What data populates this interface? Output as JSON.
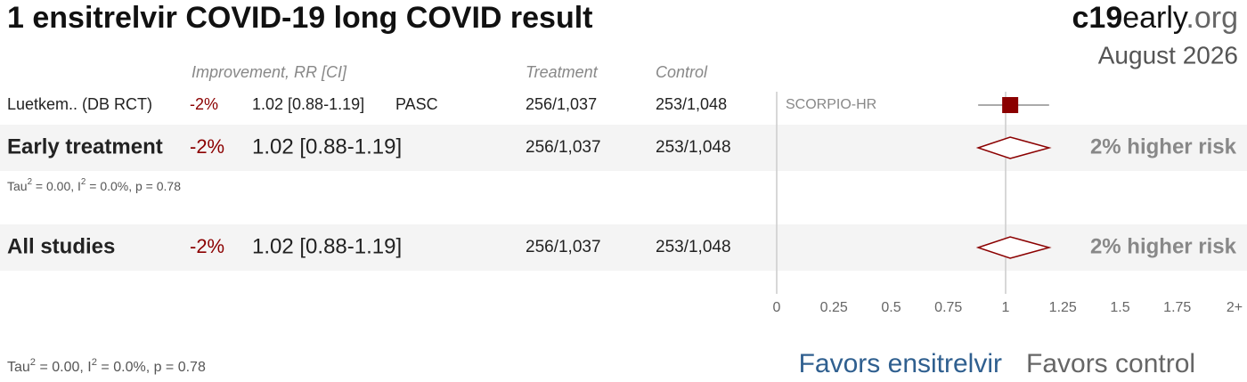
{
  "chart_data": {
    "type": "forest",
    "title": "1 ensitrelvir COVID-19 long COVID result",
    "brand": [
      "c19",
      "early",
      ".org"
    ],
    "date": "August 2026",
    "columns": {
      "improvement": "Improvement, RR [CI]",
      "treatment": "Treatment",
      "control": "Control"
    },
    "color": "#8b0000",
    "studies": [
      {
        "name": "Luetkem.. (DB RCT)",
        "improvement": "-2%",
        "rr_text": "1.02 [0.88-1.19]",
        "outcome": "PASC",
        "treatment": "256/1,037",
        "control": "253/1,048",
        "trial": "SCORPIO-HR",
        "rr": 1.02,
        "ci": [
          0.88,
          1.19
        ]
      }
    ],
    "groups": [
      {
        "name": "Early treatment",
        "improvement": "-2%",
        "rr_text": "1.02 [0.88-1.19]",
        "treatment": "256/1,037",
        "control": "253/1,048",
        "effect": "2% higher risk",
        "rr": 1.02,
        "ci": [
          0.88,
          1.19
        ],
        "heterogeneity": [
          "Tau",
          "2",
          " = 0.00, I",
          "2",
          " = 0.0%, p = 0.78"
        ]
      },
      {
        "name": "All studies",
        "improvement": "-2%",
        "rr_text": "1.02 [0.88-1.19]",
        "treatment": "256/1,037",
        "control": "253/1,048",
        "effect": "2% higher risk",
        "rr": 1.02,
        "ci": [
          0.88,
          1.19
        ],
        "heterogeneity": [
          "Tau",
          "2",
          " = 0.00, I",
          "2",
          " = 0.0%, p = 0.78"
        ]
      }
    ],
    "xlim": [
      0,
      2
    ],
    "xticks": [
      0,
      0.25,
      0.5,
      0.75,
      1,
      1.25,
      1.5,
      1.75,
      {
        "value": 2,
        "label": "2+"
      }
    ],
    "favors": [
      "Favors ensitrelvir",
      "Favors control"
    ]
  }
}
